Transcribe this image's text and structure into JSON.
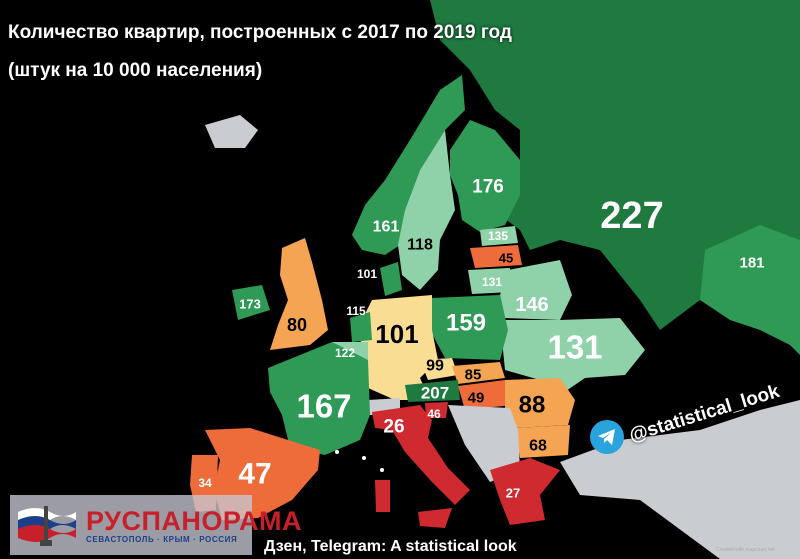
{
  "title": {
    "line1": "Количество квартир, построенных с 2017 по 2019 год",
    "line2": "(штук на 10 000 населения)"
  },
  "legend_colors": {
    "dark_green": "#1e7a3f",
    "green": "#2e9a55",
    "light_green": "#8fd1a8",
    "pale_yellow": "#f8dd92",
    "orange": "#f5a454",
    "dark_orange": "#ee6b3a",
    "red": "#cf2a30",
    "grey": "#c9cdd1",
    "sea": "#000000"
  },
  "regions": [
    {
      "id": "russia",
      "value": "227"
    },
    {
      "id": "kazakhstan",
      "value": "181"
    },
    {
      "id": "finland",
      "value": "176"
    },
    {
      "id": "france",
      "value": "167"
    },
    {
      "id": "norway",
      "value": "161"
    },
    {
      "id": "poland",
      "value": "159"
    },
    {
      "id": "belarus",
      "value": "146"
    },
    {
      "id": "estonia",
      "value": "135"
    },
    {
      "id": "ukraine",
      "value": "131"
    },
    {
      "id": "lithuania",
      "value": "131"
    },
    {
      "id": "belgium",
      "value": "122"
    },
    {
      "id": "sweden",
      "value": "118"
    },
    {
      "id": "netherlands",
      "value": "115"
    },
    {
      "id": "denmark",
      "value": "101"
    },
    {
      "id": "germany",
      "value": "101"
    },
    {
      "id": "czechia",
      "value": "99"
    },
    {
      "id": "romania",
      "value": "88"
    },
    {
      "id": "slovakia",
      "value": "85"
    },
    {
      "id": "uk",
      "value": "80"
    },
    {
      "id": "bulgaria",
      "value": "68"
    },
    {
      "id": "hungary",
      "value": "49"
    },
    {
      "id": "spain",
      "value": "47"
    },
    {
      "id": "slovenia",
      "value": "46"
    },
    {
      "id": "latvia",
      "value": "45"
    },
    {
      "id": "portugal",
      "value": "34"
    },
    {
      "id": "greece",
      "value": "27"
    },
    {
      "id": "italy",
      "value": "26"
    },
    {
      "id": "ireland",
      "value": "173"
    },
    {
      "id": "austria",
      "value": "207"
    }
  ],
  "social": {
    "handle": "@statistical_look",
    "icon": "telegram-icon"
  },
  "footer": {
    "text": "Дзен, Telegram: A statistical look"
  },
  "watermark": {
    "name": "РУСПАНОРАМА",
    "subtitle": "СЕВАСТОПОЛЬ · КРЫМ · РОССИЯ"
  },
  "credit": "Created with mapchart.net"
}
